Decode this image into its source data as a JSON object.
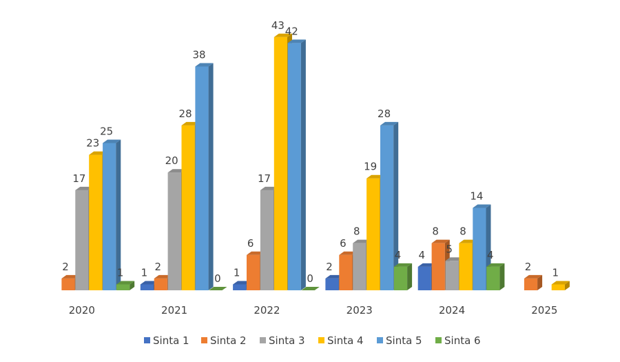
{
  "chart_data": {
    "type": "bar",
    "style": "3d-clustered-column",
    "categories": [
      "2020",
      "2021",
      "2022",
      "2023",
      "2024",
      "2025"
    ],
    "series": [
      {
        "name": "Sinta 1",
        "color": "#4472C4",
        "values": [
          null,
          1,
          1,
          2,
          4,
          null
        ]
      },
      {
        "name": "Sinta 2",
        "color": "#ED7D31",
        "values": [
          2,
          2,
          6,
          6,
          8,
          2
        ]
      },
      {
        "name": "Sinta 3",
        "color": "#A5A5A5",
        "values": [
          17,
          20,
          17,
          8,
          5,
          null
        ]
      },
      {
        "name": "Sinta 4",
        "color": "#FFC000",
        "values": [
          23,
          28,
          43,
          19,
          8,
          1
        ]
      },
      {
        "name": "Sinta 5",
        "color": "#5B9BD5",
        "values": [
          25,
          38,
          42,
          28,
          14,
          null
        ]
      },
      {
        "name": "Sinta 6",
        "color": "#70AD47",
        "values": [
          1,
          0,
          0,
          4,
          4,
          null
        ]
      }
    ],
    "ylim": [
      0,
      45
    ],
    "grid": false,
    "legend_position": "bottom",
    "data_labels": true
  }
}
